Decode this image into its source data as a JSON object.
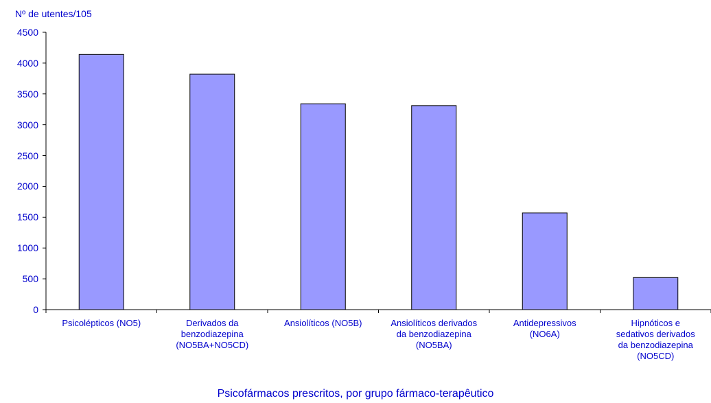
{
  "chart_data": {
    "type": "bar",
    "ylabel": "Nº de utentes/105",
    "xlabel": "Psicofármacos prescritos, por grupo fármaco-terapêutico",
    "categories": [
      [
        "Psicolépticos (NO5)"
      ],
      [
        "Derivados da",
        "benzodiazepina",
        "(NO5BA+NO5CD)"
      ],
      [
        "Ansiolíticos (NO5B)"
      ],
      [
        "Ansiolíticos derivados",
        "da benzodiazepina",
        "(NO5BA)"
      ],
      [
        "Antidepressivos",
        "(NO6A)"
      ],
      [
        "Hipnóticos e",
        "sedativos derivados",
        "da benzodiazepina",
        "(NO5CD)"
      ]
    ],
    "values": [
      4140,
      3820,
      3340,
      3310,
      1570,
      520
    ],
    "ylim": [
      0,
      4500
    ],
    "yticks": [
      0,
      500,
      1000,
      1500,
      2000,
      2500,
      3000,
      3500,
      4000,
      4500
    ],
    "grid": false,
    "bar_color": "#9999ff",
    "text_color": "#0000cc"
  }
}
